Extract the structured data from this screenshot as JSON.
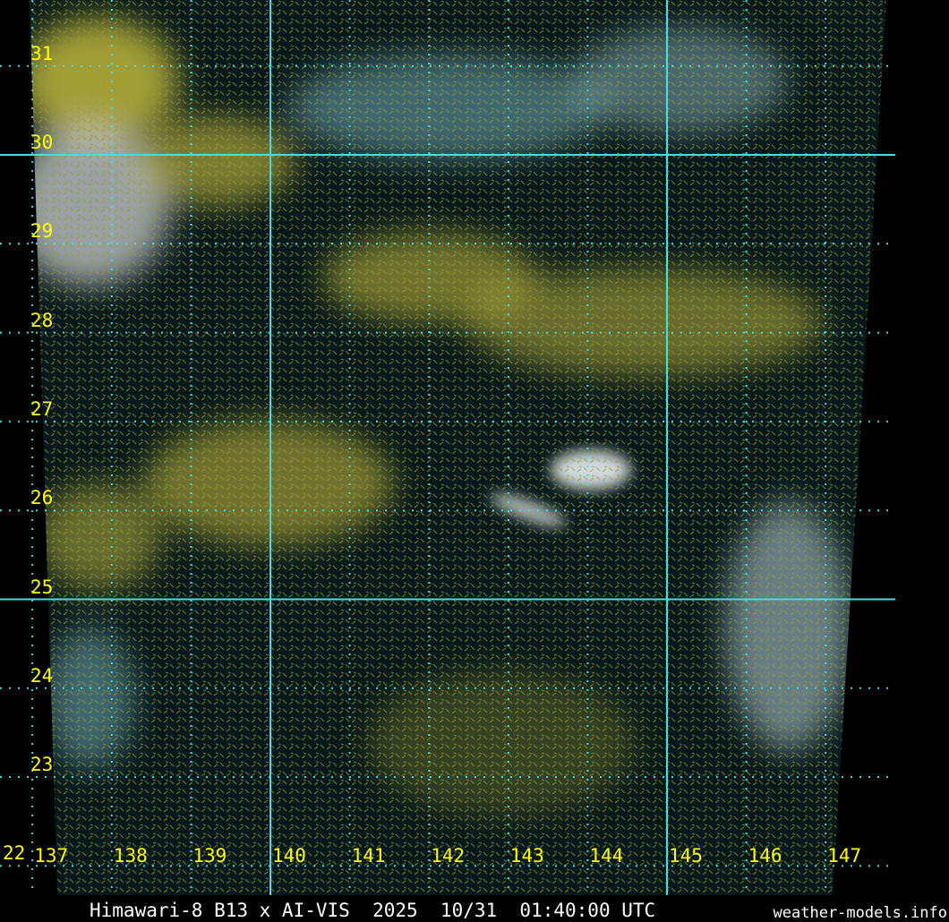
{
  "title": "Himawari-8 B13 x AI-VIS  2025  10/31  01:40:00 UTC",
  "credit": "weather-models.info",
  "grid": {
    "latitudes": [
      31,
      30,
      29,
      28,
      27,
      26,
      25,
      24,
      23,
      22
    ],
    "longitudes": [
      137,
      138,
      139,
      140,
      141,
      142,
      143,
      144,
      145,
      146,
      147
    ],
    "major_latitudes": [
      30,
      25
    ],
    "major_longitudes": [
      140,
      145
    ],
    "line_color": "#40e0e0",
    "label_color": "#ffff00"
  },
  "colors": {
    "ocean": "#05181c",
    "low_cloud": "#c8c040",
    "high_cloud": "#d8e0e4",
    "thin_cloud": "#7ab8c4"
  }
}
